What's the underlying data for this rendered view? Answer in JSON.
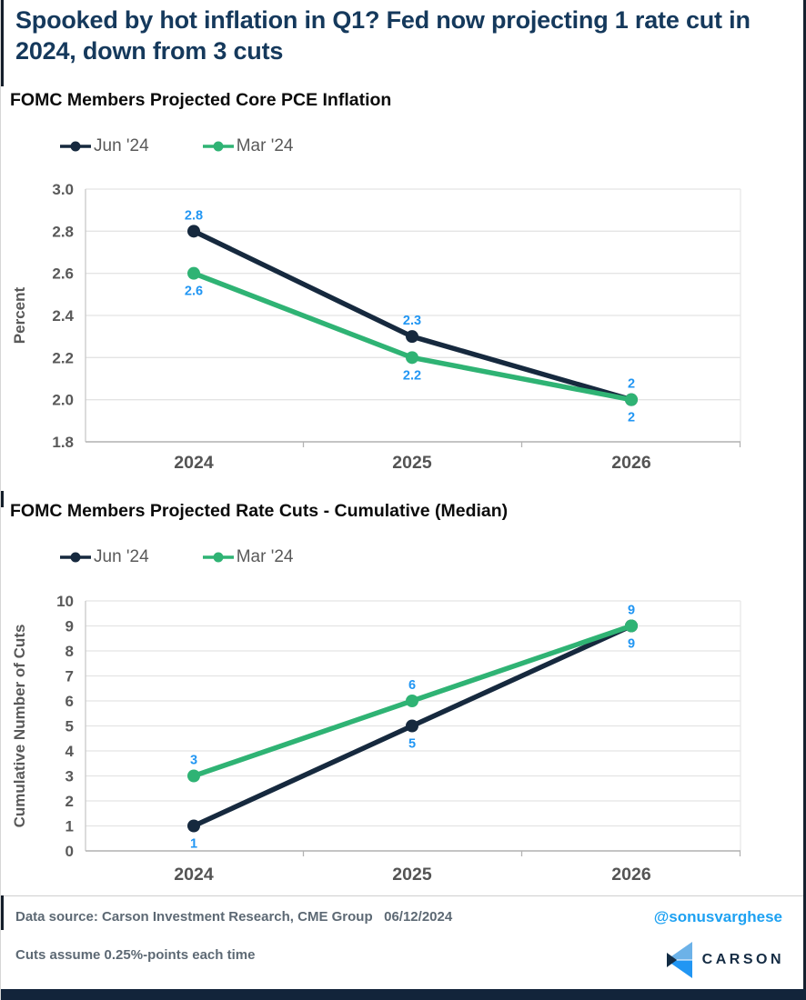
{
  "header": {
    "title": "Spooked by hot inflation in Q1? Fed now projecting 1 rate cut in 2024, down from 3 cuts"
  },
  "colors": {
    "navy": "#16293e",
    "green": "#2fb374",
    "label_blue": "#2196f3",
    "title_navy": "#15395c",
    "handle_blue": "#1da1f2",
    "logo_light_blue": "#6cb2e8",
    "logo_bright_blue": "#2196f3",
    "logo_dark_navy": "#132c44",
    "axis_gray": "#595959",
    "grid_gray": "#e4e4e4"
  },
  "chart_data": [
    {
      "type": "line",
      "title": "FOMC Members Projected Core PCE Inflation",
      "categories": [
        "2024",
        "2025",
        "2026"
      ],
      "series": [
        {
          "name": "Jun '24",
          "values": [
            2.8,
            2.3,
            2.0
          ],
          "labels": [
            "2.8",
            "2.3",
            "2"
          ],
          "color_key": "navy",
          "label_position": "above"
        },
        {
          "name": "Mar '24",
          "values": [
            2.6,
            2.2,
            2.0
          ],
          "labels": [
            "2.6",
            "2.2",
            "2"
          ],
          "color_key": "green",
          "label_position": "below"
        }
      ],
      "xlabel": "",
      "ylabel": "Percent",
      "ylim": [
        1.8,
        3.0
      ],
      "yticks": [
        "1.8",
        "2.0",
        "2.2",
        "2.4",
        "2.6",
        "2.8",
        "3.0"
      ],
      "grid": true,
      "legend_position": "top-left"
    },
    {
      "type": "line",
      "title": "FOMC Members Projected Rate Cuts - Cumulative (Median)",
      "categories": [
        "2024",
        "2025",
        "2026"
      ],
      "series": [
        {
          "name": "Jun '24",
          "values": [
            1,
            5,
            9
          ],
          "labels": [
            "1",
            "5",
            "9"
          ],
          "color_key": "navy",
          "label_position": "below"
        },
        {
          "name": "Mar '24",
          "values": [
            3,
            6,
            9
          ],
          "labels": [
            "3",
            "6",
            "9"
          ],
          "color_key": "green",
          "label_position": "above"
        }
      ],
      "xlabel": "",
      "ylabel": "Cumulative Number of Cuts",
      "ylim": [
        0,
        10
      ],
      "yticks": [
        "0",
        "1",
        "2",
        "3",
        "4",
        "5",
        "6",
        "7",
        "8",
        "9",
        "10"
      ],
      "grid": true,
      "legend_position": "top-left"
    }
  ],
  "footer": {
    "source": "Data source: Carson Investment Research, CME Group   06/12/2024",
    "note": "Cuts assume 0.25%-points each time",
    "handle": "@sonusvarghese",
    "brand": "CARSON"
  }
}
